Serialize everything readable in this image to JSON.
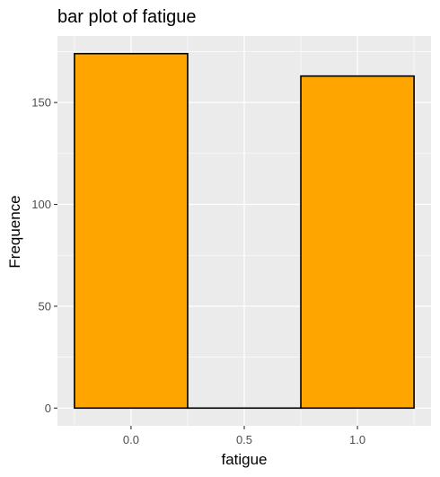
{
  "chart_data": {
    "type": "bar",
    "title": "bar plot of fatigue",
    "xlabel": "fatigue",
    "ylabel": "Frequence",
    "bars": [
      {
        "x_start": -0.25,
        "x_end": 0.25,
        "value": 174
      },
      {
        "x_start": 0.25,
        "x_end": 0.75,
        "value": 0
      },
      {
        "x_start": 0.75,
        "x_end": 1.25,
        "value": 163
      }
    ],
    "xlim": [
      -0.325,
      1.325
    ],
    "ylim": [
      -8.7,
      182.7
    ],
    "x_ticks": [
      {
        "value": 0,
        "label": "0.0"
      },
      {
        "value": 0.5,
        "label": "0.5"
      },
      {
        "value": 1,
        "label": "1.0"
      }
    ],
    "x_minor_ticks": [
      -0.25,
      0.25,
      0.75,
      1.25
    ],
    "y_ticks": [
      {
        "value": 0,
        "label": "0"
      },
      {
        "value": 50,
        "label": "50"
      },
      {
        "value": 100,
        "label": "100"
      },
      {
        "value": 150,
        "label": "150"
      }
    ],
    "y_minor_ticks": [
      25,
      75,
      125,
      175
    ],
    "grid": true,
    "colors": {
      "bar_fill": "#FFA500",
      "bar_outline": "#000000",
      "panel_background": "#EBEBEB",
      "grid_line": "#FFFFFF",
      "tick_text": "#4D4D4D",
      "tick_mark": "#333333"
    }
  }
}
